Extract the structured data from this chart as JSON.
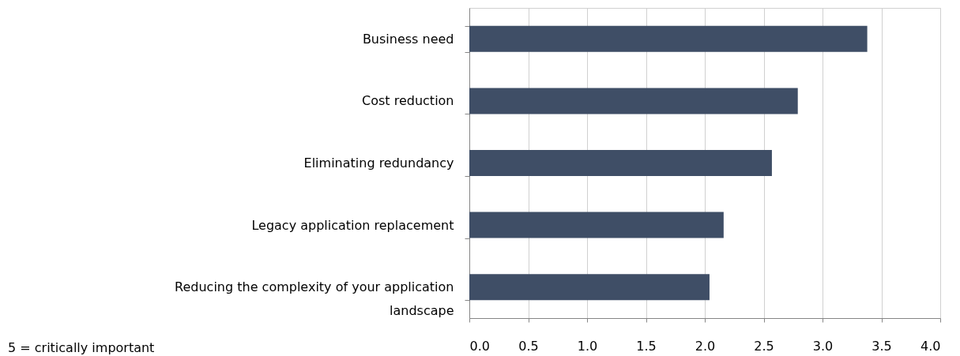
{
  "chart_data": {
    "type": "bar",
    "orientation": "horizontal",
    "categories": [
      "Business need",
      "Cost reduction",
      "Eliminating redundancy",
      "Legacy application replacement",
      "Reducing the complexity of your application landscape"
    ],
    "values": [
      3.38,
      2.79,
      2.57,
      2.16,
      2.04
    ],
    "color": "#3f4e66",
    "xlim": [
      0,
      4
    ],
    "xticks": [
      {
        "value": 0,
        "label": "0.0"
      },
      {
        "value": 0.5,
        "label": "0.5"
      },
      {
        "value": 1,
        "label": "1.0"
      },
      {
        "value": 1.5,
        "label": "1.5"
      },
      {
        "value": 2,
        "label": "2.0"
      },
      {
        "value": 2.5,
        "label": "2.5"
      },
      {
        "value": 3,
        "label": "3.0"
      },
      {
        "value": 3.5,
        "label": "3.5"
      },
      {
        "value": 4,
        "label": "4.0"
      }
    ],
    "grid": "x",
    "annotations": [
      "5 = critically important"
    ]
  }
}
